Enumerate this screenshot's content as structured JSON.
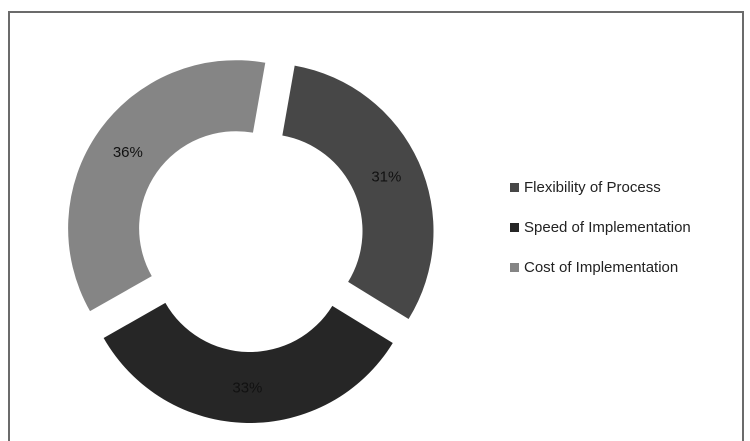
{
  "chart_data": {
    "type": "pie",
    "variant": "doughnut-exploded",
    "title": "",
    "start_angle_deg": 10,
    "categories": [
      "Flexibility of Process",
      "Speed of Implementation",
      "Cost of Implementation"
    ],
    "values": [
      31,
      33,
      36
    ],
    "labels": [
      "31%",
      "33%",
      "36%"
    ],
    "colors": [
      "#474747",
      "#262626",
      "#858585"
    ],
    "legend_position": "right"
  }
}
